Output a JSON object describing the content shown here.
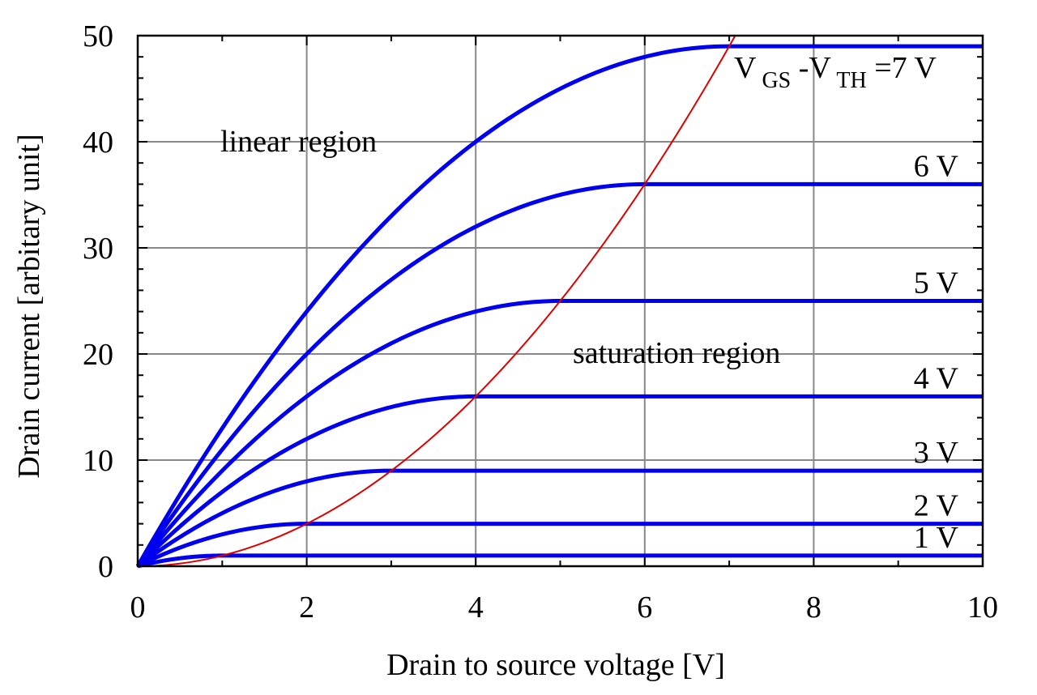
{
  "chart_data": {
    "type": "line",
    "title": "",
    "xlabel": "Drain to source voltage [V]",
    "ylabel": "Drain current [arbitary unit]",
    "xlim": [
      0,
      10
    ],
    "ylim": [
      0,
      50
    ],
    "x_ticks": [
      "0",
      "2",
      "4",
      "6",
      "8",
      "10"
    ],
    "y_ticks": [
      "0",
      "10",
      "20",
      "30",
      "40",
      "50"
    ],
    "grid": true,
    "series": [
      {
        "vov": 1,
        "label": "1 V",
        "color": "#0000ee",
        "saturation_current": 1
      },
      {
        "vov": 2,
        "label": "2 V",
        "color": "#0000ee",
        "saturation_current": 4
      },
      {
        "vov": 3,
        "label": "3 V",
        "color": "#0000ee",
        "saturation_current": 9
      },
      {
        "vov": 4,
        "label": "4 V",
        "color": "#0000ee",
        "saturation_current": 16
      },
      {
        "vov": 5,
        "label": "5 V",
        "color": "#0000ee",
        "saturation_current": 25
      },
      {
        "vov": 6,
        "label": "6 V",
        "color": "#0000ee",
        "saturation_current": 36
      },
      {
        "vov": 7,
        "label_parts": [
          "V",
          "GS",
          "-V",
          "TH",
          "=7 V"
        ],
        "color": "#0000ee",
        "saturation_current": 49
      }
    ],
    "boundary_curve": {
      "color": "#dd0000",
      "x": [
        0,
        1,
        2,
        3,
        4,
        5,
        6,
        7
      ],
      "y": [
        0,
        1,
        4,
        9,
        16,
        25,
        36,
        49
      ]
    },
    "annotations": {
      "linear_region": "linear region",
      "saturation_region": "saturation region"
    }
  }
}
